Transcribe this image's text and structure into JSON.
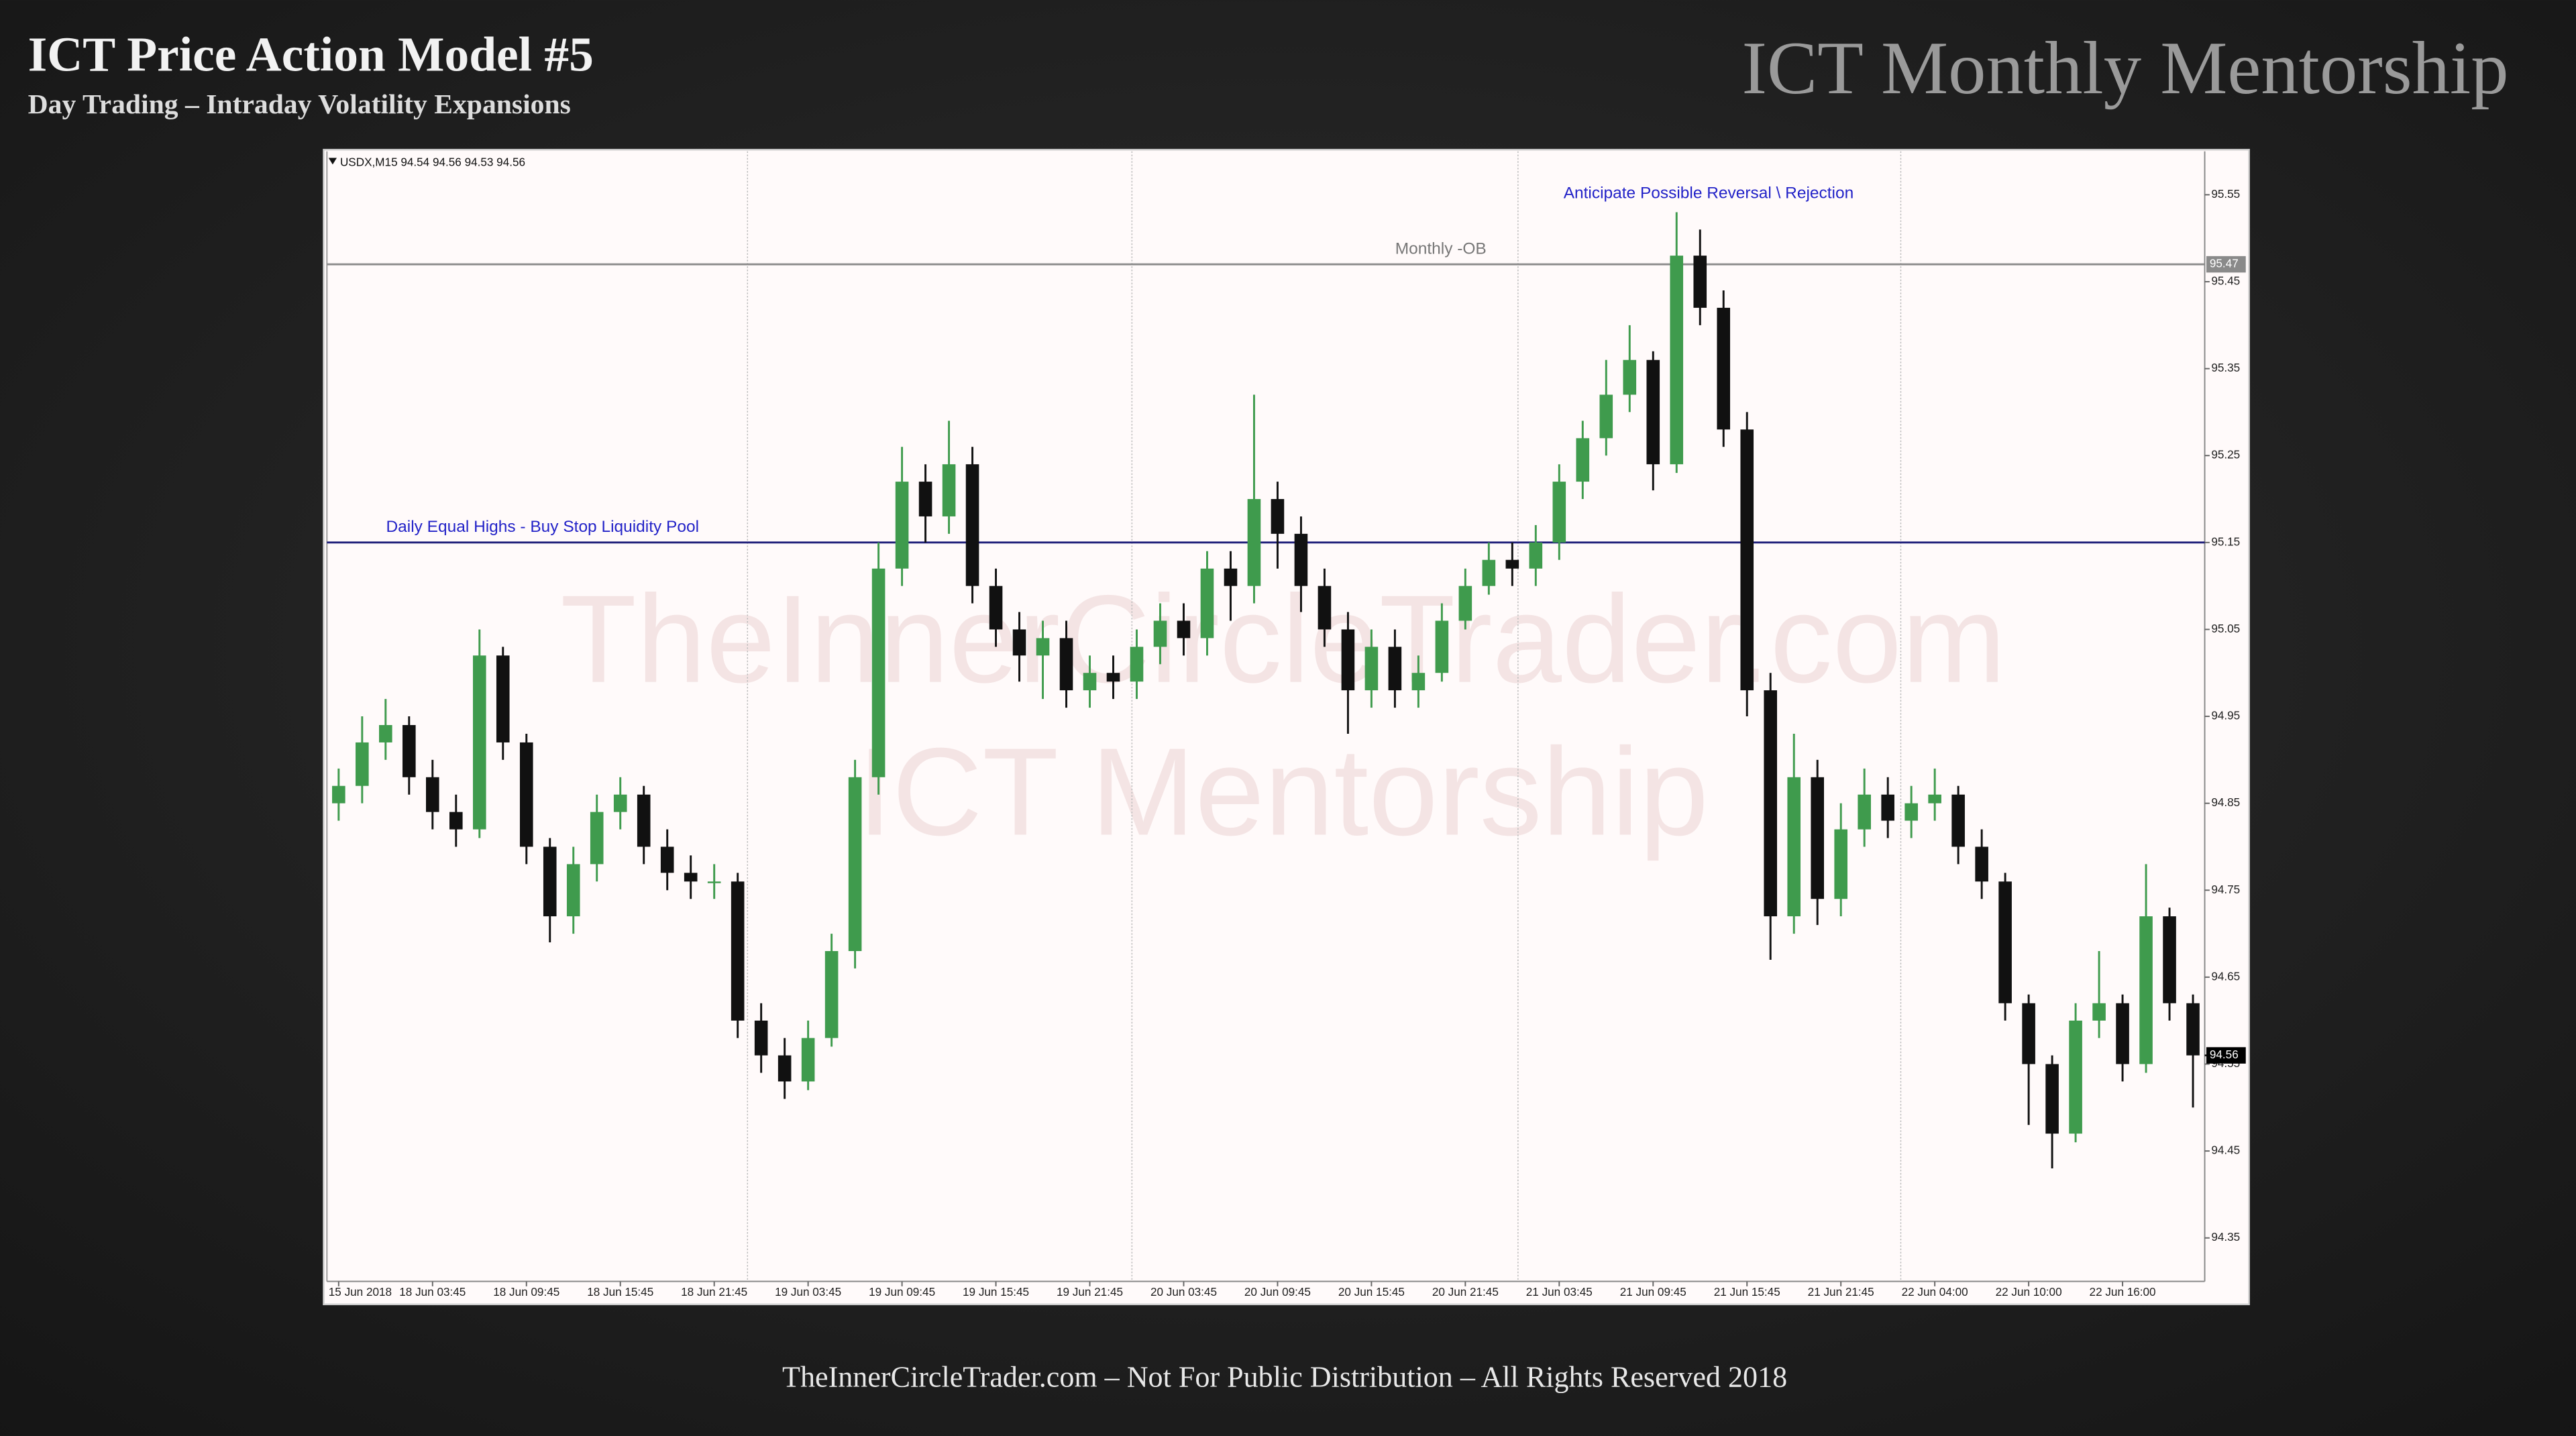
{
  "header": {
    "title": "ICT Price Action Model #5",
    "subtitle": "Day Trading – Intraday Volatility Expansions",
    "brand": "ICT Monthly Mentorship"
  },
  "footer": "TheInnerCircleTrader.com – Not For Public Distribution – All Rights Reserved 2018",
  "watermark": [
    "TheInnerCircleTrader.com",
    "ICT Mentorship"
  ],
  "chart_data": {
    "type": "candlestick",
    "symbol_header": "USDX,M15  94.54 94.56 94.53 94.56",
    "annotation": "Anticipate Possible Reversal \\ Rejection",
    "categories": [
      "15 Jun 2018",
      null,
      null,
      null,
      "18 Jun 03:45",
      null,
      null,
      null,
      "18 Jun 09:45",
      null,
      null,
      null,
      "18 Jun 15:45",
      null,
      null,
      null,
      "18 Jun 21:45",
      null,
      null,
      null,
      "19 Jun 03:45",
      null,
      null,
      null,
      "19 Jun 09:45",
      null,
      null,
      null,
      "19 Jun 15:45",
      null,
      null,
      null,
      "19 Jun 21:45",
      null,
      null,
      null,
      "20 Jun 03:45",
      null,
      null,
      null,
      "20 Jun 09:45",
      null,
      null,
      null,
      "20 Jun 15:45",
      null,
      null,
      null,
      "20 Jun 21:45",
      null,
      null,
      null,
      "21 Jun 03:45",
      null,
      null,
      null,
      "21 Jun 09:45",
      null,
      null,
      null,
      "21 Jun 15:45",
      null,
      null,
      null,
      "21 Jun 21:45",
      null,
      null,
      null,
      "22 Jun 04:00",
      null,
      null,
      null,
      "22 Jun 10:00",
      null,
      null,
      null,
      "22 Jun 16:00",
      null,
      null,
      null
    ],
    "series": [
      {
        "up_color": "#3f9b4d",
        "down_color": "#111111",
        "open": [
          94.85,
          94.87,
          94.92,
          94.94,
          94.88,
          94.84,
          94.82,
          95.02,
          94.92,
          94.8,
          94.72,
          94.78,
          94.84,
          94.86,
          94.8,
          94.77,
          94.76,
          94.76,
          94.6,
          94.56,
          94.53,
          94.58,
          94.68,
          94.88,
          95.12,
          95.22,
          95.18,
          95.24,
          95.1,
          95.05,
          95.02,
          95.04,
          94.98,
          95.0,
          94.99,
          95.03,
          95.06,
          95.04,
          95.12,
          95.1,
          95.2,
          95.16,
          95.1,
          95.05,
          94.98,
          95.03,
          94.98,
          95.0,
          95.06,
          95.1,
          95.13,
          95.12,
          95.15,
          95.22,
          95.27,
          95.32,
          95.36,
          95.24,
          95.48,
          95.42,
          95.28,
          94.98,
          94.72,
          94.88,
          94.74,
          94.82,
          94.86,
          94.83,
          94.85,
          94.86,
          94.8,
          94.76,
          94.62,
          94.55,
          94.47,
          94.6,
          94.62,
          94.55,
          94.72,
          94.62
        ],
        "high": [
          94.89,
          94.95,
          94.97,
          94.95,
          94.9,
          94.86,
          95.05,
          95.03,
          94.93,
          94.81,
          94.8,
          94.86,
          94.88,
          94.87,
          94.82,
          94.79,
          94.78,
          94.77,
          94.62,
          94.58,
          94.6,
          94.7,
          94.9,
          95.15,
          95.26,
          95.24,
          95.29,
          95.26,
          95.12,
          95.07,
          95.06,
          95.06,
          95.02,
          95.02,
          95.05,
          95.08,
          95.08,
          95.14,
          95.14,
          95.32,
          95.22,
          95.18,
          95.12,
          95.07,
          95.05,
          95.05,
          95.02,
          95.08,
          95.12,
          95.15,
          95.15,
          95.17,
          95.24,
          95.29,
          95.36,
          95.4,
          95.37,
          95.53,
          95.51,
          95.44,
          95.3,
          95.0,
          94.93,
          94.9,
          94.85,
          94.89,
          94.88,
          94.87,
          94.89,
          94.87,
          94.82,
          94.77,
          94.63,
          94.56,
          94.62,
          94.68,
          94.63,
          94.78,
          94.73,
          94.63
        ],
        "low": [
          94.83,
          94.85,
          94.9,
          94.86,
          94.82,
          94.8,
          94.81,
          94.9,
          94.78,
          94.69,
          94.7,
          94.76,
          94.82,
          94.78,
          94.75,
          94.74,
          94.74,
          94.58,
          94.54,
          94.51,
          94.52,
          94.57,
          94.66,
          94.86,
          95.1,
          95.15,
          95.16,
          95.08,
          95.03,
          94.99,
          94.97,
          94.96,
          94.96,
          94.97,
          94.97,
          95.01,
          95.02,
          95.02,
          95.06,
          95.08,
          95.12,
          95.07,
          95.03,
          94.93,
          94.96,
          94.96,
          94.96,
          94.99,
          95.05,
          95.09,
          95.1,
          95.1,
          95.13,
          95.2,
          95.25,
          95.3,
          95.21,
          95.23,
          95.4,
          95.26,
          94.95,
          94.67,
          94.7,
          94.71,
          94.72,
          94.8,
          94.81,
          94.81,
          94.83,
          94.78,
          94.74,
          94.6,
          94.48,
          94.43,
          94.46,
          94.58,
          94.53,
          94.54,
          94.6,
          94.5
        ],
        "close": [
          94.87,
          94.92,
          94.94,
          94.88,
          94.84,
          94.82,
          95.02,
          94.92,
          94.8,
          94.72,
          94.78,
          94.84,
          94.86,
          94.8,
          94.77,
          94.76,
          94.76,
          94.6,
          94.56,
          94.53,
          94.58,
          94.68,
          94.88,
          95.12,
          95.22,
          95.18,
          95.24,
          95.1,
          95.05,
          95.02,
          95.04,
          94.98,
          95.0,
          94.99,
          95.03,
          95.06,
          95.04,
          95.12,
          95.1,
          95.2,
          95.16,
          95.1,
          95.05,
          94.98,
          95.03,
          94.98,
          95.0,
          95.06,
          95.1,
          95.13,
          95.12,
          95.15,
          95.22,
          95.27,
          95.32,
          95.36,
          95.24,
          95.48,
          95.42,
          95.28,
          94.98,
          94.72,
          94.88,
          94.74,
          94.82,
          94.86,
          94.83,
          94.85,
          94.86,
          94.8,
          94.76,
          94.62,
          94.55,
          94.47,
          94.6,
          94.62,
          94.55,
          94.72,
          94.62,
          94.56
        ]
      }
    ],
    "levels": [
      {
        "label": "Monthly -OB",
        "value": 95.47,
        "color": "#8a8a8a",
        "label_color": "#777777",
        "axis_label": true
      },
      {
        "label": "Daily Equal Highs - Buy Stop Liquidity Pool",
        "value": 95.15,
        "color": "#1c1c78",
        "label_color": "#2323c8",
        "axis_label": false
      }
    ],
    "last_price": 94.56,
    "ylim": [
      94.3,
      95.6
    ],
    "yticks": [
      94.35,
      94.45,
      94.55,
      94.65,
      94.75,
      94.85,
      94.95,
      95.05,
      95.15,
      95.25,
      95.35,
      95.45,
      95.55
    ],
    "grid": false
  }
}
